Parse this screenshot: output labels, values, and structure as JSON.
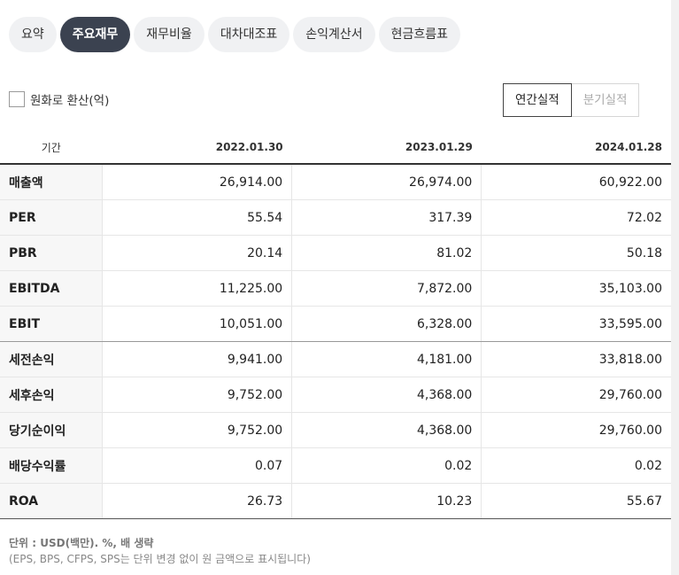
{
  "tabs": [
    "요약",
    "주요재무",
    "재무비율",
    "대차대조표",
    "손익계산서",
    "현금흐름표"
  ],
  "active_tab": "주요재무",
  "convert_label": "원화로 환산(억)",
  "period_buttons": [
    "연간실적",
    "분기실적"
  ],
  "active_period": "연간실적",
  "table": {
    "period_header": "기간",
    "columns": [
      "2022.01.30",
      "2023.01.29",
      "2024.01.28"
    ],
    "rows": [
      {
        "label": "매출액",
        "values": [
          "26,914.00",
          "26,974.00",
          "60,922.00"
        ]
      },
      {
        "label": "PER",
        "values": [
          "55.54",
          "317.39",
          "72.02"
        ]
      },
      {
        "label": "PBR",
        "values": [
          "20.14",
          "81.02",
          "50.18"
        ]
      },
      {
        "label": "EBITDA",
        "values": [
          "11,225.00",
          "7,872.00",
          "35,103.00"
        ]
      },
      {
        "label": "EBIT",
        "values": [
          "10,051.00",
          "6,328.00",
          "33,595.00"
        ]
      },
      {
        "label": "세전손익",
        "values": [
          "9,941.00",
          "4,181.00",
          "33,818.00"
        ]
      },
      {
        "label": "세후손익",
        "values": [
          "9,752.00",
          "4,368.00",
          "29,760.00"
        ]
      },
      {
        "label": "당기순이익",
        "values": [
          "9,752.00",
          "4,368.00",
          "29,760.00"
        ]
      },
      {
        "label": "배당수익률",
        "values": [
          "0.07",
          "0.02",
          "0.02"
        ]
      },
      {
        "label": "ROA",
        "values": [
          "26.73",
          "10.23",
          "55.67"
        ]
      }
    ]
  },
  "footnote": {
    "unit": "단위 : USD(백만). %, 배 생략",
    "note": "(EPS, BPS, CFPS, SPS는 단위 변경 없이 원 금액으로 표시됩니다)"
  }
}
